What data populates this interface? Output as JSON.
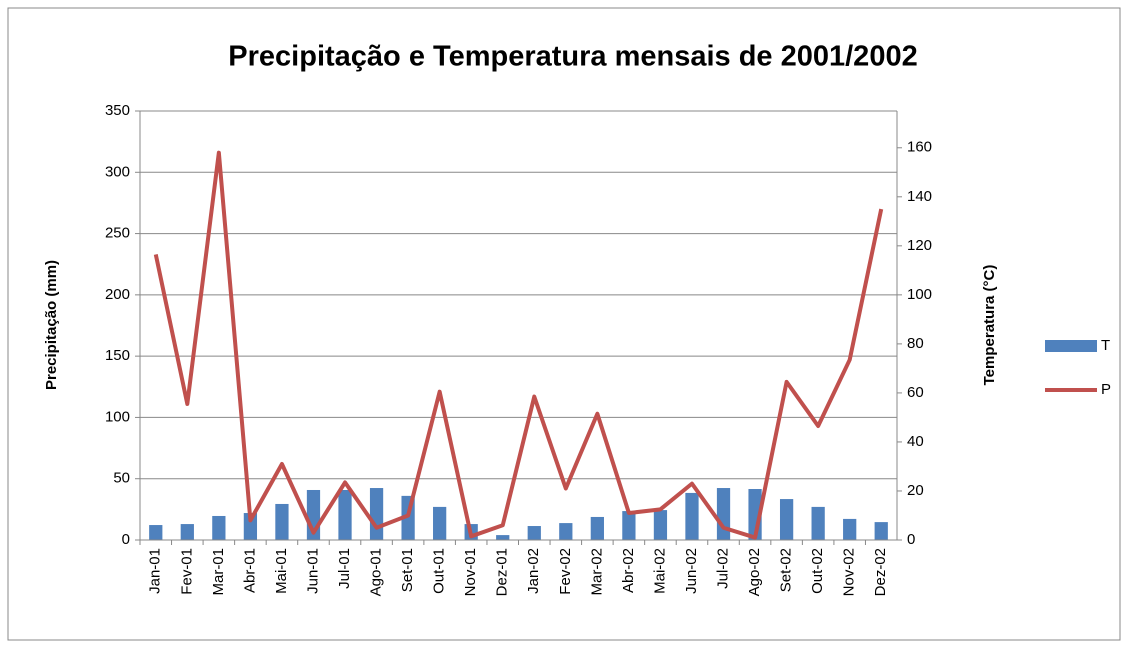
{
  "chart_data": {
    "type": "bar-line",
    "title": "Precipitação e Temperatura mensais de 2001/2002",
    "y_label": "Precipitação (mm)",
    "y2_label": "Temperatura (°C)",
    "categories": [
      "Jan-01",
      "Fev-01",
      "Mar-01",
      "Abr-01",
      "Mai-01",
      "Jun-01",
      "Jul-01",
      "Ago-01",
      "Set-01",
      "Out-01",
      "Nov-01",
      "Dez-01",
      "Jan-02",
      "Fev-02",
      "Mar-02",
      "Abr-02",
      "Mai-02",
      "Jun-02",
      "Jul-02",
      "Ago-02",
      "Set-02",
      "Out-02",
      "Nov-02",
      "Dez-02"
    ],
    "series": [
      {
        "name": "T",
        "type": "bar",
        "axis": "y2",
        "color": "#4f81bd",
        "values": [
          6.1,
          6.5,
          9.8,
          11,
          14.7,
          20.4,
          20.4,
          21.2,
          18,
          13.5,
          6.5,
          2,
          5.7,
          6.9,
          9.4,
          11.8,
          12.2,
          19.2,
          21.2,
          20.8,
          16.7,
          13.5,
          8.6,
          7.3
        ]
      },
      {
        "name": "P",
        "type": "line",
        "axis": "y",
        "color": "#c0504d",
        "values": [
          233,
          111,
          316,
          16,
          62,
          6,
          47,
          10,
          20,
          121,
          3,
          12,
          117,
          42,
          103,
          22,
          25,
          46,
          10,
          2,
          129,
          93,
          147,
          270
        ]
      }
    ],
    "ylim": [
      0,
      350
    ],
    "yticks": [
      0,
      50,
      100,
      150,
      200,
      250,
      300,
      350
    ],
    "y2lim": [
      0,
      175
    ],
    "y2ticks": [
      0,
      20,
      40,
      60,
      80,
      100,
      120,
      140,
      160
    ],
    "grid": true,
    "legend": "right"
  }
}
